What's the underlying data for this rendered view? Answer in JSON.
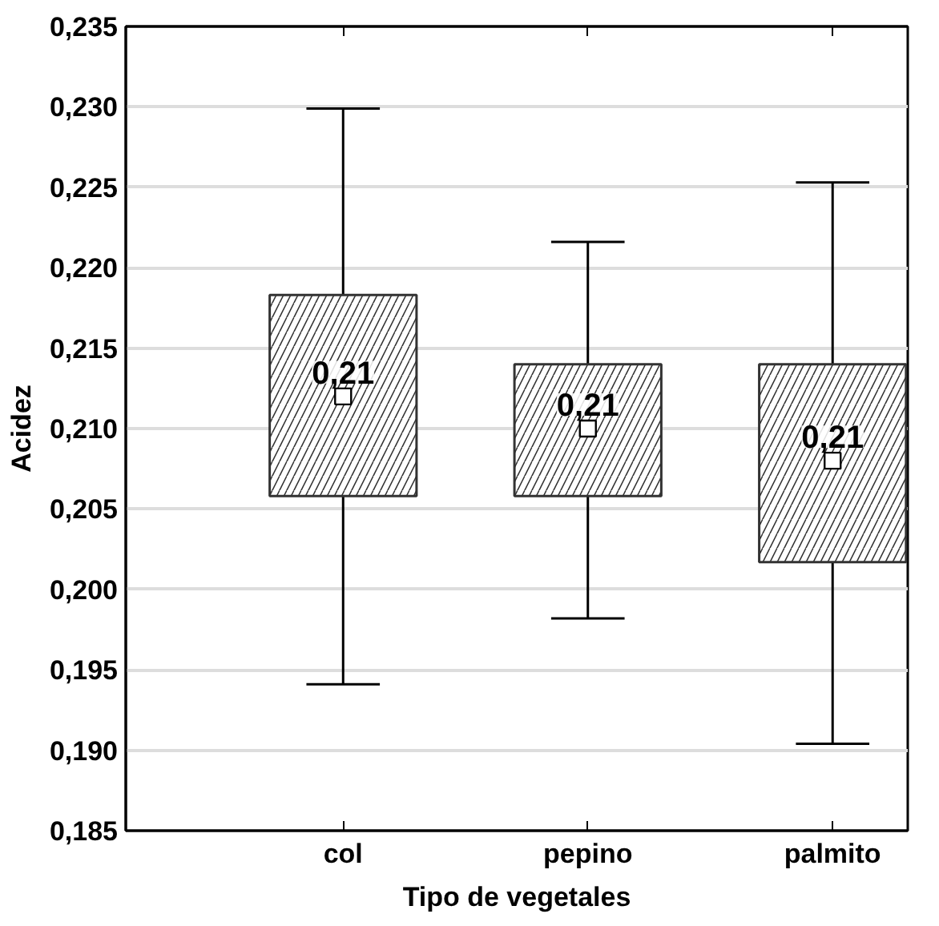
{
  "chart_data": {
    "type": "box",
    "xlabel": "Tipo de vegetales",
    "ylabel": "Acidez",
    "categories": [
      "col",
      "pepino",
      "palmito"
    ],
    "boxes": [
      {
        "low": 0.1941,
        "q1": 0.2058,
        "q3": 0.2183,
        "high": 0.2299,
        "mean": 0.212
      },
      {
        "low": 0.1982,
        "q1": 0.2058,
        "q3": 0.214,
        "high": 0.2216,
        "mean": 0.21
      },
      {
        "low": 0.1904,
        "q1": 0.2017,
        "q3": 0.214,
        "high": 0.2253,
        "mean": 0.208
      }
    ],
    "annotations": [
      "0,21",
      "0,21",
      "0,21"
    ],
    "ylim": [
      0.185,
      0.235
    ],
    "yticks": [
      {
        "value": 0.185,
        "label": "0,185"
      },
      {
        "value": 0.19,
        "label": "0,190"
      },
      {
        "value": 0.195,
        "label": "0,195"
      },
      {
        "value": 0.2,
        "label": "0,200"
      },
      {
        "value": 0.205,
        "label": "0,205"
      },
      {
        "value": 0.21,
        "label": "0,210"
      },
      {
        "value": 0.215,
        "label": "0,215"
      },
      {
        "value": 0.22,
        "label": "0,220"
      },
      {
        "value": 0.225,
        "label": "0,225"
      },
      {
        "value": 0.23,
        "label": "0,230"
      },
      {
        "value": 0.235,
        "label": "0,235"
      }
    ],
    "grid": "y",
    "marker": "square"
  }
}
